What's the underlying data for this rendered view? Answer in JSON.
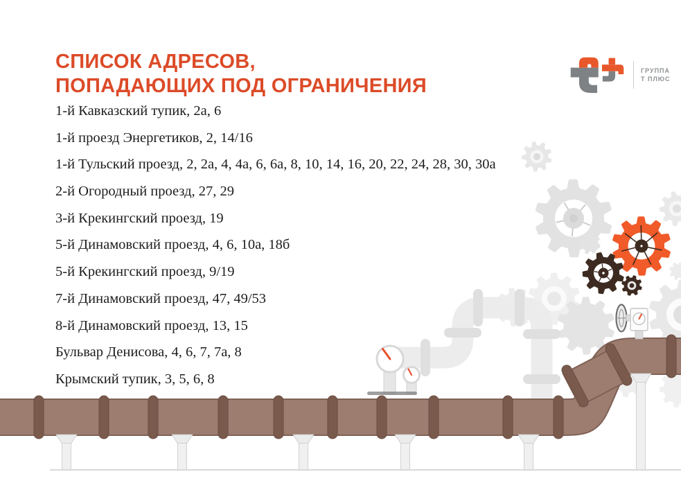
{
  "title": {
    "line1": "СПИСОК АДРЕСОВ,",
    "line2": "ПОПАДАЮЩИХ ПОД ОГРАНИЧЕНИЯ"
  },
  "logo": {
    "line1": "ГРУППА",
    "line2": "Т ПЛЮС"
  },
  "addresses": [
    "1-й Кавказский тупик, 2а, 6",
    "1-й проезд Энергетиков, 2, 14/16",
    "1-й Тульский проезд, 2, 2а, 4, 4а, 6, 6а, 8, 10, 14, 16, 20, 22, 24, 28, 30, 30а",
    "2-й Огородный проезд, 27, 29",
    "3-й Крекингский проезд, 19",
    "5-й Динамовский проезд, 4, 6, 10а, 18б",
    "5-й Крекингский проезд, 9/19",
    "7-й Динамовский проезд, 47, 49/53",
    "8-й Динамовский проезд, 13, 15",
    "Бульвар Денисова, 4, 6, 7, 7а, 8",
    "Крымский тупик, 3, 5, 6, 8"
  ],
  "palette": {
    "accent": "#DC4B28",
    "text": "#1D1D1D",
    "logo_orange": "#E8582B",
    "logo_gray_glyph": "#7F8285",
    "logo_text_gray": "#8E9194",
    "pipe_brown": "#9C7D6F",
    "pipe_brown_edge": "#7F6156",
    "pipe_flange": "#7A5A4D",
    "pipe_flange_edge": "#694C41",
    "pipe_gray": "#ECECEC",
    "pipe_gray_flange": "#DFDFDF",
    "gear_orange": "#F15A29",
    "gear_dark": "#3D2B21",
    "needle_orange": "#E8502A",
    "ground_gray": "#D8D8D8"
  }
}
